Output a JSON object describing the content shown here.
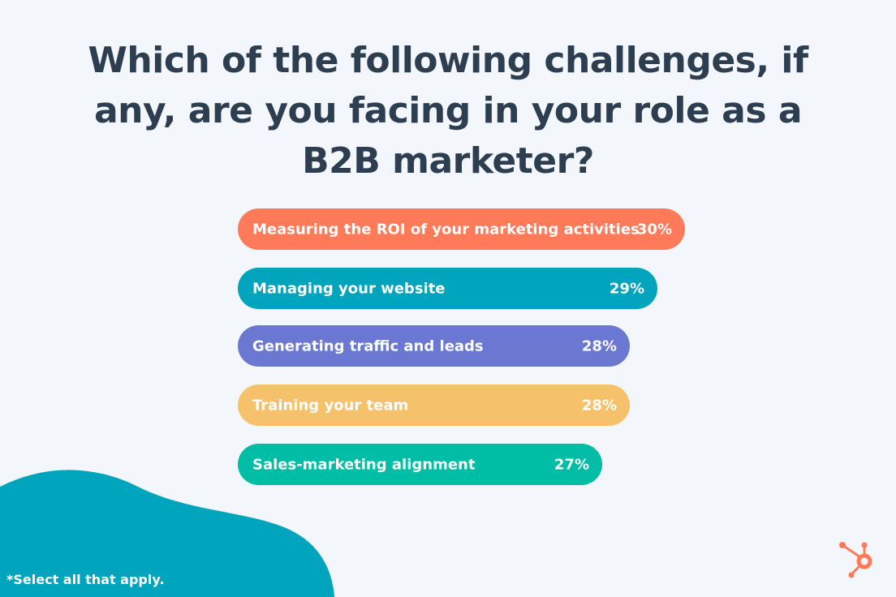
{
  "chart_data": {
    "type": "bar",
    "orientation": "horizontal",
    "title": "Which of the following challenges, if any, are you facing in your role as a B2B marketer?",
    "categories": [
      "Measuring the ROI of your marketing activities",
      "Managing your website",
      "Generating traffic and leads",
      "Training your team",
      "Sales-marketing alignment"
    ],
    "values": [
      30,
      29,
      28,
      28,
      27
    ],
    "value_labels": [
      "30%",
      "29%",
      "28%",
      "28%",
      "27%"
    ],
    "colors": [
      "#ff7a59",
      "#00a4bd",
      "#6a78d1",
      "#f5c26b",
      "#00bda5"
    ],
    "grid": false
  },
  "footnote": "*Select all that apply.",
  "colors": {
    "background": "#f3f7fb",
    "blob": "#00a4bd",
    "title": "#2d3e50",
    "logo": "#ff7a59"
  },
  "logo": {
    "icon": "hubspot-sprocket-icon"
  }
}
